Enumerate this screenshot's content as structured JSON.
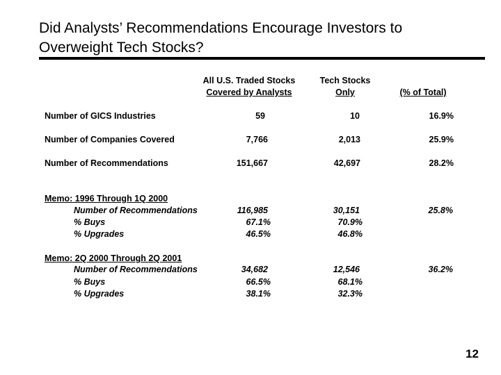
{
  "title": {
    "line1": "Did Analysts’ Recommendations Encourage Investors to",
    "line2": "Overweight Tech Stocks?"
  },
  "columns": {
    "all": {
      "line1": "All U.S. Traded Stocks",
      "line2": "Covered by Analysts"
    },
    "tech": {
      "line1": "Tech Stocks",
      "line2": "Only"
    },
    "pct": {
      "line1": "(% of Total)"
    }
  },
  "rows": [
    {
      "label": "Number of GICS Industries",
      "all": "59",
      "tech": "10",
      "pct": "16.9%"
    },
    {
      "label": "Number of Companies Covered",
      "all": "7,766",
      "tech": "2,013",
      "pct": "25.9%"
    },
    {
      "label": "Number of Recommendations",
      "all": "151,667",
      "tech": "42,697",
      "pct": "28.2%"
    }
  ],
  "memo1": {
    "heading": "Memo:  1996 Through 1Q 2000",
    "rows": [
      {
        "label": "Number of Recommendations",
        "all": "116,985",
        "tech": "30,151",
        "pct": "25.8%"
      },
      {
        "label": "% Buys",
        "all": "67.1%",
        "tech": "70.9%",
        "pct": ""
      },
      {
        "label": "% Upgrades",
        "all": "46.5%",
        "tech": "46.8%",
        "pct": ""
      }
    ]
  },
  "memo2": {
    "heading": "Memo:  2Q 2000 Through 2Q 2001",
    "rows": [
      {
        "label": "Number of Recommendations",
        "all": "34,682",
        "tech": "12,546",
        "pct": "36.2%"
      },
      {
        "label": "% Buys",
        "all": "66.5%",
        "tech": "68.1%",
        "pct": ""
      },
      {
        "label": "% Upgrades",
        "all": "38.1%",
        "tech": "32.3%",
        "pct": ""
      }
    ]
  },
  "page_number": "12"
}
